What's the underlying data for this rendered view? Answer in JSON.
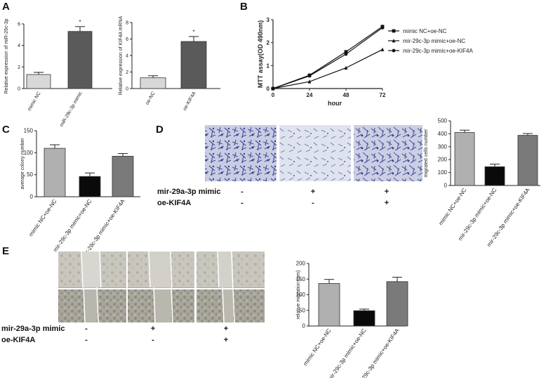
{
  "panels": {
    "A": "A",
    "B": "B",
    "C": "C",
    "D": "D",
    "E": "E"
  },
  "chart_data": [
    {
      "id": "A1",
      "type": "bar",
      "categories": [
        "mimic NC",
        "miR-29c-3p mimic"
      ],
      "values": [
        1.3,
        5.3
      ],
      "errors": [
        0.2,
        0.45
      ],
      "ylabel": "Relative expression of miR-29c-3p",
      "ylim": [
        0,
        6
      ],
      "yticks": [
        0,
        2,
        4,
        6
      ],
      "colors": [
        "#d8d8d8",
        "#5a5a5a"
      ],
      "annotations": [
        {
          "index": 1,
          "text": "*"
        }
      ]
    },
    {
      "id": "A2",
      "type": "bar",
      "categories": [
        "oe-NC",
        "oe-KIF4A"
      ],
      "values": [
        1.3,
        5.7
      ],
      "errors": [
        0.25,
        0.6
      ],
      "ylabel": "Relative expression of KIF4A mRNA",
      "ylim": [
        0,
        8
      ],
      "yticks": [
        0,
        2,
        4,
        6,
        8
      ],
      "colors": [
        "#d8d8d8",
        "#5a5a5a"
      ],
      "annotations": [
        {
          "index": 1,
          "text": "*"
        }
      ]
    },
    {
      "id": "B",
      "type": "line",
      "x": [
        0,
        24,
        48,
        72
      ],
      "xlabel": "hour",
      "ylabel": "MTT assay(OD 490nm)",
      "xlim": [
        0,
        72
      ],
      "xticks": [
        0,
        24,
        48,
        72
      ],
      "ylim": [
        0,
        3
      ],
      "yticks": [
        0,
        1,
        2,
        3
      ],
      "series": [
        {
          "name": "mimic NC+oe-NC",
          "values": [
            0,
            0.58,
            1.6,
            2.7
          ],
          "marker": "square"
        },
        {
          "name": "mir-29c-3p mimic+oe-NC",
          "values": [
            0,
            0.3,
            0.9,
            1.7
          ],
          "marker": "triangle"
        },
        {
          "name": "mir-29c-3p mimic+oe-KIF4A",
          "values": [
            0,
            0.55,
            1.5,
            2.65
          ],
          "marker": "circle"
        }
      ],
      "legend": "right"
    },
    {
      "id": "C",
      "type": "bar",
      "categories": [
        "mimic NC+oe-NC",
        "mir-29c-3p mimic+oe-NC",
        "mir-29c-3p mimic+oe-KIF4A"
      ],
      "values": [
        110,
        46,
        92
      ],
      "errors": [
        8,
        8,
        6
      ],
      "ylabel": "average colony number",
      "ylim": [
        0,
        150
      ],
      "yticks": [
        0,
        50,
        100,
        150
      ],
      "colors": [
        "#b0b0b0",
        "#0a0a0a",
        "#7a7a7a"
      ]
    },
    {
      "id": "D",
      "type": "bar",
      "categories": [
        "mimic NC+oe-NC",
        "mir-29c-3p mimic+oe-NC",
        "mir-29c-3p mimic+oe-KIF4A"
      ],
      "values": [
        410,
        145,
        388
      ],
      "errors": [
        18,
        20,
        14
      ],
      "ylabel": "migrated cells number",
      "ylim": [
        0,
        500
      ],
      "yticks": [
        0,
        100,
        200,
        300,
        400,
        500
      ],
      "colors": [
        "#b0b0b0",
        "#0a0a0a",
        "#7a7a7a"
      ]
    },
    {
      "id": "E",
      "type": "bar",
      "categories": [
        "mimic NC+oe-NC",
        "mir-29c-3p mimic+oe-NC",
        "mir-29c-3p mimic+oe-KIF4A"
      ],
      "values": [
        136,
        49,
        142
      ],
      "errors": [
        13,
        5,
        14
      ],
      "ylabel": "relative migration (um)",
      "ylim": [
        0,
        200
      ],
      "yticks": [
        0,
        50,
        100,
        150,
        200
      ],
      "colors": [
        "#b0b0b0",
        "#0a0a0a",
        "#7a7a7a"
      ]
    }
  ],
  "conditions_D": {
    "row1_label": "mir-29a-3p mimic",
    "row1_values": [
      "-",
      "+",
      "+"
    ],
    "row2_label": "oe-KIF4A",
    "row2_values": [
      "-",
      "-",
      "+"
    ]
  },
  "conditions_E": {
    "row1_label": "mir-29a-3p mimic",
    "row1_values": [
      "-",
      "+",
      "+"
    ],
    "row2_label": "oe-KIF4A",
    "row2_values": [
      "-",
      "-",
      "+"
    ]
  }
}
